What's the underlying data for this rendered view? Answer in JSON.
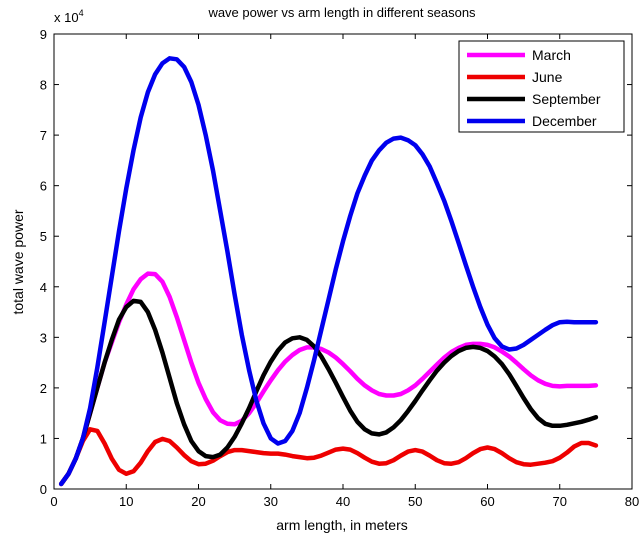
{
  "chart_data": {
    "type": "line",
    "title": "wave power vs arm length in different seasons",
    "xlabel": "arm length, in meters",
    "ylabel": "total wave power",
    "xlim": [
      0,
      80
    ],
    "ylim": [
      0,
      9
    ],
    "y_multiplier_label": "x 10",
    "y_multiplier_exponent": "4",
    "xticks": [
      "0",
      "10",
      "20",
      "30",
      "40",
      "50",
      "60",
      "70",
      "80"
    ],
    "yticks": [
      "0",
      "1",
      "2",
      "3",
      "4",
      "5",
      "6",
      "7",
      "8",
      "9"
    ],
    "grid": false,
    "legend_position": "top-right",
    "series": [
      {
        "name": "March",
        "color": "#ff00ff",
        "points": [
          [
            1,
            0.1
          ],
          [
            2,
            0.3
          ],
          [
            3,
            0.6
          ],
          [
            4,
            1.0
          ],
          [
            5,
            1.5
          ],
          [
            6,
            2.0
          ],
          [
            7,
            2.5
          ],
          [
            8,
            2.9
          ],
          [
            9,
            3.3
          ],
          [
            10,
            3.65
          ],
          [
            11,
            3.95
          ],
          [
            12,
            4.15
          ],
          [
            13,
            4.26
          ],
          [
            14,
            4.25
          ],
          [
            15,
            4.1
          ],
          [
            16,
            3.8
          ],
          [
            17,
            3.4
          ],
          [
            18,
            2.95
          ],
          [
            19,
            2.5
          ],
          [
            20,
            2.1
          ],
          [
            21,
            1.78
          ],
          [
            22,
            1.52
          ],
          [
            23,
            1.36
          ],
          [
            24,
            1.29
          ],
          [
            25,
            1.28
          ],
          [
            26,
            1.35
          ],
          [
            27,
            1.5
          ],
          [
            28,
            1.7
          ],
          [
            29,
            1.93
          ],
          [
            30,
            2.15
          ],
          [
            31,
            2.35
          ],
          [
            32,
            2.52
          ],
          [
            33,
            2.65
          ],
          [
            34,
            2.75
          ],
          [
            35,
            2.8
          ],
          [
            36,
            2.8
          ],
          [
            37,
            2.77
          ],
          [
            38,
            2.7
          ],
          [
            39,
            2.6
          ],
          [
            40,
            2.47
          ],
          [
            41,
            2.33
          ],
          [
            42,
            2.18
          ],
          [
            43,
            2.05
          ],
          [
            44,
            1.95
          ],
          [
            45,
            1.88
          ],
          [
            46,
            1.85
          ],
          [
            47,
            1.85
          ],
          [
            48,
            1.88
          ],
          [
            49,
            1.95
          ],
          [
            50,
            2.05
          ],
          [
            51,
            2.18
          ],
          [
            52,
            2.32
          ],
          [
            53,
            2.46
          ],
          [
            54,
            2.6
          ],
          [
            55,
            2.71
          ],
          [
            56,
            2.79
          ],
          [
            57,
            2.85
          ],
          [
            58,
            2.87
          ],
          [
            59,
            2.87
          ],
          [
            60,
            2.85
          ],
          [
            61,
            2.8
          ],
          [
            62,
            2.72
          ],
          [
            63,
            2.62
          ],
          [
            64,
            2.5
          ],
          [
            65,
            2.37
          ],
          [
            66,
            2.25
          ],
          [
            67,
            2.15
          ],
          [
            68,
            2.08
          ],
          [
            69,
            2.04
          ],
          [
            70,
            2.03
          ],
          [
            71,
            2.04
          ],
          [
            72,
            2.04
          ],
          [
            73,
            2.04
          ],
          [
            74,
            2.04
          ],
          [
            75,
            2.05
          ]
        ]
      },
      {
        "name": "June",
        "color": "#ee0000",
        "points": [
          [
            1,
            0.1
          ],
          [
            2,
            0.3
          ],
          [
            3,
            0.6
          ],
          [
            4,
            0.95
          ],
          [
            5,
            1.18
          ],
          [
            6,
            1.15
          ],
          [
            7,
            0.9
          ],
          [
            8,
            0.6
          ],
          [
            9,
            0.38
          ],
          [
            10,
            0.3
          ],
          [
            11,
            0.35
          ],
          [
            12,
            0.52
          ],
          [
            13,
            0.75
          ],
          [
            14,
            0.93
          ],
          [
            15,
            0.99
          ],
          [
            16,
            0.95
          ],
          [
            17,
            0.82
          ],
          [
            18,
            0.67
          ],
          [
            19,
            0.55
          ],
          [
            20,
            0.49
          ],
          [
            21,
            0.5
          ],
          [
            22,
            0.56
          ],
          [
            23,
            0.65
          ],
          [
            24,
            0.73
          ],
          [
            25,
            0.77
          ],
          [
            26,
            0.77
          ],
          [
            27,
            0.75
          ],
          [
            28,
            0.73
          ],
          [
            29,
            0.71
          ],
          [
            30,
            0.7
          ],
          [
            31,
            0.7
          ],
          [
            32,
            0.68
          ],
          [
            33,
            0.65
          ],
          [
            34,
            0.63
          ],
          [
            35,
            0.61
          ],
          [
            36,
            0.62
          ],
          [
            37,
            0.66
          ],
          [
            38,
            0.72
          ],
          [
            39,
            0.78
          ],
          [
            40,
            0.8
          ],
          [
            41,
            0.78
          ],
          [
            42,
            0.71
          ],
          [
            43,
            0.62
          ],
          [
            44,
            0.54
          ],
          [
            45,
            0.5
          ],
          [
            46,
            0.51
          ],
          [
            47,
            0.57
          ],
          [
            48,
            0.66
          ],
          [
            49,
            0.74
          ],
          [
            50,
            0.77
          ],
          [
            51,
            0.74
          ],
          [
            52,
            0.66
          ],
          [
            53,
            0.57
          ],
          [
            54,
            0.51
          ],
          [
            55,
            0.5
          ],
          [
            56,
            0.53
          ],
          [
            57,
            0.61
          ],
          [
            58,
            0.71
          ],
          [
            59,
            0.79
          ],
          [
            60,
            0.82
          ],
          [
            61,
            0.79
          ],
          [
            62,
            0.71
          ],
          [
            63,
            0.61
          ],
          [
            64,
            0.53
          ],
          [
            65,
            0.49
          ],
          [
            66,
            0.48
          ],
          [
            67,
            0.5
          ],
          [
            68,
            0.52
          ],
          [
            69,
            0.55
          ],
          [
            70,
            0.62
          ],
          [
            71,
            0.72
          ],
          [
            72,
            0.84
          ],
          [
            73,
            0.91
          ],
          [
            74,
            0.91
          ],
          [
            75,
            0.86
          ]
        ]
      },
      {
        "name": "September",
        "color": "#000000",
        "points": [
          [
            1,
            0.1
          ],
          [
            2,
            0.3
          ],
          [
            3,
            0.6
          ],
          [
            4,
            1.0
          ],
          [
            5,
            1.5
          ],
          [
            6,
            2.0
          ],
          [
            7,
            2.5
          ],
          [
            8,
            2.95
          ],
          [
            9,
            3.35
          ],
          [
            10,
            3.6
          ],
          [
            11,
            3.72
          ],
          [
            12,
            3.7
          ],
          [
            13,
            3.5
          ],
          [
            14,
            3.15
          ],
          [
            15,
            2.7
          ],
          [
            16,
            2.2
          ],
          [
            17,
            1.7
          ],
          [
            18,
            1.28
          ],
          [
            19,
            0.95
          ],
          [
            20,
            0.75
          ],
          [
            21,
            0.65
          ],
          [
            22,
            0.63
          ],
          [
            23,
            0.68
          ],
          [
            24,
            0.82
          ],
          [
            25,
            1.03
          ],
          [
            26,
            1.3
          ],
          [
            27,
            1.6
          ],
          [
            28,
            1.93
          ],
          [
            29,
            2.25
          ],
          [
            30,
            2.52
          ],
          [
            31,
            2.74
          ],
          [
            32,
            2.9
          ],
          [
            33,
            2.98
          ],
          [
            34,
            3.0
          ],
          [
            35,
            2.95
          ],
          [
            36,
            2.82
          ],
          [
            37,
            2.62
          ],
          [
            38,
            2.37
          ],
          [
            39,
            2.1
          ],
          [
            40,
            1.82
          ],
          [
            41,
            1.55
          ],
          [
            42,
            1.33
          ],
          [
            43,
            1.18
          ],
          [
            44,
            1.1
          ],
          [
            45,
            1.08
          ],
          [
            46,
            1.12
          ],
          [
            47,
            1.22
          ],
          [
            48,
            1.36
          ],
          [
            49,
            1.54
          ],
          [
            50,
            1.74
          ],
          [
            51,
            1.95
          ],
          [
            52,
            2.15
          ],
          [
            53,
            2.34
          ],
          [
            54,
            2.5
          ],
          [
            55,
            2.63
          ],
          [
            56,
            2.73
          ],
          [
            57,
            2.79
          ],
          [
            58,
            2.81
          ],
          [
            59,
            2.79
          ],
          [
            60,
            2.73
          ],
          [
            61,
            2.62
          ],
          [
            62,
            2.47
          ],
          [
            63,
            2.27
          ],
          [
            64,
            2.04
          ],
          [
            65,
            1.8
          ],
          [
            66,
            1.58
          ],
          [
            67,
            1.4
          ],
          [
            68,
            1.29
          ],
          [
            69,
            1.25
          ],
          [
            70,
            1.25
          ],
          [
            71,
            1.27
          ],
          [
            72,
            1.3
          ],
          [
            73,
            1.33
          ],
          [
            74,
            1.37
          ],
          [
            75,
            1.42
          ]
        ]
      },
      {
        "name": "December",
        "color": "#0000ee",
        "points": [
          [
            1,
            0.1
          ],
          [
            2,
            0.3
          ],
          [
            3,
            0.6
          ],
          [
            4,
            1.0
          ],
          [
            5,
            1.6
          ],
          [
            6,
            2.4
          ],
          [
            7,
            3.3
          ],
          [
            8,
            4.2
          ],
          [
            9,
            5.1
          ],
          [
            10,
            5.95
          ],
          [
            11,
            6.7
          ],
          [
            12,
            7.35
          ],
          [
            13,
            7.85
          ],
          [
            14,
            8.2
          ],
          [
            15,
            8.42
          ],
          [
            16,
            8.52
          ],
          [
            17,
            8.5
          ],
          [
            18,
            8.35
          ],
          [
            19,
            8.05
          ],
          [
            20,
            7.6
          ],
          [
            21,
            7.0
          ],
          [
            22,
            6.3
          ],
          [
            23,
            5.5
          ],
          [
            24,
            4.7
          ],
          [
            25,
            3.85
          ],
          [
            26,
            3.05
          ],
          [
            27,
            2.35
          ],
          [
            28,
            1.75
          ],
          [
            29,
            1.3
          ],
          [
            30,
            1.0
          ],
          [
            31,
            0.9
          ],
          [
            32,
            0.95
          ],
          [
            33,
            1.15
          ],
          [
            34,
            1.5
          ],
          [
            35,
            2.0
          ],
          [
            36,
            2.55
          ],
          [
            37,
            3.15
          ],
          [
            38,
            3.75
          ],
          [
            39,
            4.35
          ],
          [
            40,
            4.9
          ],
          [
            41,
            5.4
          ],
          [
            42,
            5.85
          ],
          [
            43,
            6.2
          ],
          [
            44,
            6.5
          ],
          [
            45,
            6.7
          ],
          [
            46,
            6.85
          ],
          [
            47,
            6.93
          ],
          [
            48,
            6.95
          ],
          [
            49,
            6.9
          ],
          [
            50,
            6.8
          ],
          [
            51,
            6.62
          ],
          [
            52,
            6.38
          ],
          [
            53,
            6.05
          ],
          [
            54,
            5.7
          ],
          [
            55,
            5.3
          ],
          [
            56,
            4.87
          ],
          [
            57,
            4.43
          ],
          [
            58,
            4.0
          ],
          [
            59,
            3.6
          ],
          [
            60,
            3.25
          ],
          [
            61,
            2.98
          ],
          [
            62,
            2.82
          ],
          [
            63,
            2.76
          ],
          [
            64,
            2.78
          ],
          [
            65,
            2.85
          ],
          [
            66,
            2.95
          ],
          [
            67,
            3.05
          ],
          [
            68,
            3.15
          ],
          [
            69,
            3.24
          ],
          [
            70,
            3.3
          ],
          [
            71,
            3.31
          ],
          [
            72,
            3.3
          ],
          [
            73,
            3.3
          ],
          [
            74,
            3.3
          ],
          [
            75,
            3.3
          ]
        ]
      }
    ]
  }
}
